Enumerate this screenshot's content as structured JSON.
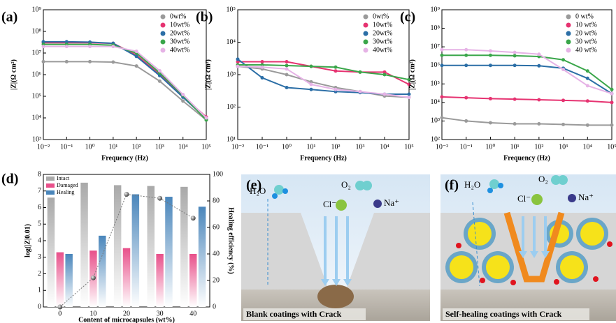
{
  "chart_data": [
    {
      "type": "line",
      "panel_label": "(a)",
      "xlabel": "Frequency (Hz)",
      "ylabel": "|Z|(Ω cm²)",
      "xscale": "log",
      "yscale": "log",
      "x": [
        0.01,
        0.1,
        1,
        10,
        100,
        1000,
        10000,
        100000
      ],
      "xlim": [
        0.01,
        100000
      ],
      "xticks": [
        {
          "value": 0.01,
          "label": "10⁻²"
        },
        {
          "value": 0.1,
          "label": "10⁻¹"
        },
        {
          "value": 1,
          "label": "10⁰"
        },
        {
          "value": 10,
          "label": "10¹"
        },
        {
          "value": 100,
          "label": "10²"
        },
        {
          "value": 1000,
          "label": "10³"
        },
        {
          "value": 10000,
          "label": "10⁴"
        },
        {
          "value": 100000,
          "label": "10⁵"
        }
      ],
      "ylim": [
        1000,
        1000000000
      ],
      "yticks": [
        {
          "value": 1000,
          "label": "10³"
        },
        {
          "value": 10000,
          "label": "10⁴"
        },
        {
          "value": 100000,
          "label": "10⁵"
        },
        {
          "value": 1000000,
          "label": "10⁶"
        },
        {
          "value": 10000000,
          "label": "10⁷"
        },
        {
          "value": 100000000,
          "label": "10⁸"
        },
        {
          "value": 1000000000,
          "label": "10⁹"
        }
      ],
      "series": [
        {
          "name": "0wt%",
          "color": "#9a9a9a",
          "values": [
            4000000,
            4000000,
            4000000,
            3800000,
            2500000,
            500000,
            60000,
            8000
          ]
        },
        {
          "name": "10wt%",
          "color": "#e63371",
          "values": [
            30000000,
            30000000,
            30000000,
            28000000,
            8000000,
            1000000,
            100000,
            11000
          ]
        },
        {
          "name": "20wt%",
          "color": "#2b6ea6",
          "values": [
            33000000,
            33000000,
            32000000,
            28000000,
            7000000,
            900000,
            90000,
            9000
          ]
        },
        {
          "name": "30wt%",
          "color": "#3aa64a",
          "values": [
            25000000,
            25000000,
            25000000,
            23000000,
            10000000,
            1200000,
            110000,
            8000
          ]
        },
        {
          "name": "40wt%",
          "color": "#e6b3e6",
          "values": [
            20000000,
            20000000,
            20000000,
            20000000,
            12000000,
            1500000,
            120000,
            10000
          ]
        }
      ]
    },
    {
      "type": "line",
      "panel_label": "(b)",
      "xlabel": "Frequency (Hz)",
      "ylabel": "|Z|(Ω cm²)",
      "xscale": "log",
      "yscale": "log",
      "x": [
        0.01,
        0.1,
        1,
        10,
        100,
        1000,
        10000,
        100000
      ],
      "xlim": [
        0.01,
        100000
      ],
      "xticks": [
        {
          "value": 0.01,
          "label": "10⁻²"
        },
        {
          "value": 0.1,
          "label": "10⁻¹"
        },
        {
          "value": 1,
          "label": "10⁰"
        },
        {
          "value": 10,
          "label": "10¹"
        },
        {
          "value": 100,
          "label": "10²"
        },
        {
          "value": 1000,
          "label": "10³"
        },
        {
          "value": 10000,
          "label": "10⁴"
        },
        {
          "value": 100000,
          "label": "10⁵"
        }
      ],
      "ylim": [
        10,
        100000
      ],
      "yticks": [
        {
          "value": 10,
          "label": "10¹"
        },
        {
          "value": 100,
          "label": "10²"
        },
        {
          "value": 1000,
          "label": "10³"
        },
        {
          "value": 10000,
          "label": "10⁴"
        },
        {
          "value": 100000,
          "label": "10⁵"
        }
      ],
      "series": [
        {
          "name": "0wt%",
          "color": "#9a9a9a",
          "values": [
            1800,
            1500,
            1000,
            600,
            400,
            300,
            220,
            200
          ]
        },
        {
          "name": "10wt%",
          "color": "#e63371",
          "values": [
            2500,
            2500,
            2500,
            1800,
            1300,
            1200,
            1200,
            500
          ]
        },
        {
          "name": "20wt%",
          "color": "#2b6ea6",
          "values": [
            3000,
            800,
            400,
            350,
            300,
            280,
            250,
            250
          ]
        },
        {
          "name": "30wt%",
          "color": "#3aa64a",
          "values": [
            2000,
            2000,
            1900,
            1800,
            1700,
            1200,
            1000,
            700
          ]
        },
        {
          "name": "40wt%",
          "color": "#e6b3e6",
          "values": [
            1800,
            1700,
            1500,
            500,
            350,
            300,
            250,
            200
          ]
        }
      ]
    },
    {
      "type": "line",
      "panel_label": "(c)",
      "xlabel": "Frequency (Hz)",
      "ylabel": "|Z|(Ω cm²)",
      "xscale": "log",
      "yscale": "log",
      "x": [
        0.01,
        0.1,
        1,
        10,
        100,
        1000,
        10000,
        100000
      ],
      "xlim": [
        0.01,
        100000
      ],
      "xticks": [
        {
          "value": 0.01,
          "label": "10⁻²"
        },
        {
          "value": 0.1,
          "label": "10⁻¹"
        },
        {
          "value": 1,
          "label": "10⁰"
        },
        {
          "value": 10,
          "label": "10¹"
        },
        {
          "value": 100,
          "label": "10²"
        },
        {
          "value": 1000,
          "label": "10³"
        },
        {
          "value": 10000,
          "label": "10⁴"
        },
        {
          "value": 100000,
          "label": "10⁵"
        }
      ],
      "ylim": [
        100,
        1000000000
      ],
      "yticks": [
        {
          "value": 100,
          "label": "10²"
        },
        {
          "value": 1000,
          "label": "10³"
        },
        {
          "value": 10000,
          "label": "10⁴"
        },
        {
          "value": 100000,
          "label": "10⁵"
        },
        {
          "value": 1000000,
          "label": "10⁶"
        },
        {
          "value": 10000000,
          "label": "10⁷"
        },
        {
          "value": 100000000,
          "label": "10⁸"
        },
        {
          "value": 1000000000,
          "label": "10⁹"
        }
      ],
      "series": [
        {
          "name": "0 wt%",
          "color": "#9a9a9a",
          "values": [
            1500,
            1000,
            800,
            700,
            700,
            650,
            600,
            600
          ]
        },
        {
          "name": "10 wt%",
          "color": "#e63371",
          "values": [
            20000,
            18000,
            16000,
            15000,
            14000,
            13000,
            12000,
            10000
          ]
        },
        {
          "name": "20 wt%",
          "color": "#2b6ea6",
          "values": [
            1000000,
            1000000,
            1000000,
            1000000,
            950000,
            700000,
            200000,
            30000
          ]
        },
        {
          "name": "30 wt%",
          "color": "#3aa64a",
          "values": [
            3500000,
            3500000,
            3500000,
            3300000,
            3000000,
            2000000,
            500000,
            50000
          ]
        },
        {
          "name": "40 wt%",
          "color": "#e6b3e6",
          "values": [
            7000000,
            7000000,
            6000000,
            5000000,
            4000000,
            600000,
            80000,
            30000
          ]
        }
      ]
    },
    {
      "type": "bar",
      "panel_label": "(d)",
      "xlabel": "Content of microcapsules (wt%)",
      "ylabel": "log(|Z|0.01)",
      "y2label": "Healing efficiency (%)",
      "categories": [
        "0",
        "10",
        "20",
        "30",
        "40"
      ],
      "ylim": [
        0,
        8
      ],
      "yticks": [
        0,
        1,
        2,
        3,
        4,
        5,
        6,
        7,
        8
      ],
      "y2lim": [
        0,
        100
      ],
      "y2ticks": [
        0,
        20,
        40,
        60,
        80,
        100
      ],
      "series": [
        {
          "name": "Intact",
          "color": "#a9a9a9",
          "values": [
            6.6,
            7.5,
            7.35,
            7.3,
            7.25
          ]
        },
        {
          "name": "Damaged",
          "color": "#e8508a",
          "values": [
            3.3,
            3.4,
            3.55,
            3.2,
            3.2
          ]
        },
        {
          "name": "Healing",
          "color": "#4a86bb",
          "values": [
            3.2,
            4.3,
            6.8,
            6.65,
            6.05
          ]
        },
        {
          "color": "#777777",
          "axis": "y2",
          "values": [
            0,
            22,
            85,
            82,
            67
          ]
        }
      ]
    }
  ],
  "diagrams": [
    {
      "panel_label": "(e)",
      "water": "H₂O",
      "oxygen": "O₂",
      "chloride": "Cl⁻",
      "sodium": "Na⁺",
      "caption": "Blank coatings with Crack"
    },
    {
      "panel_label": "(f)",
      "water": "H₂O",
      "oxygen": "O₂",
      "chloride": "Cl⁻",
      "sodium": "Na⁺",
      "caption": "Self-healing coatings with Crack"
    }
  ]
}
